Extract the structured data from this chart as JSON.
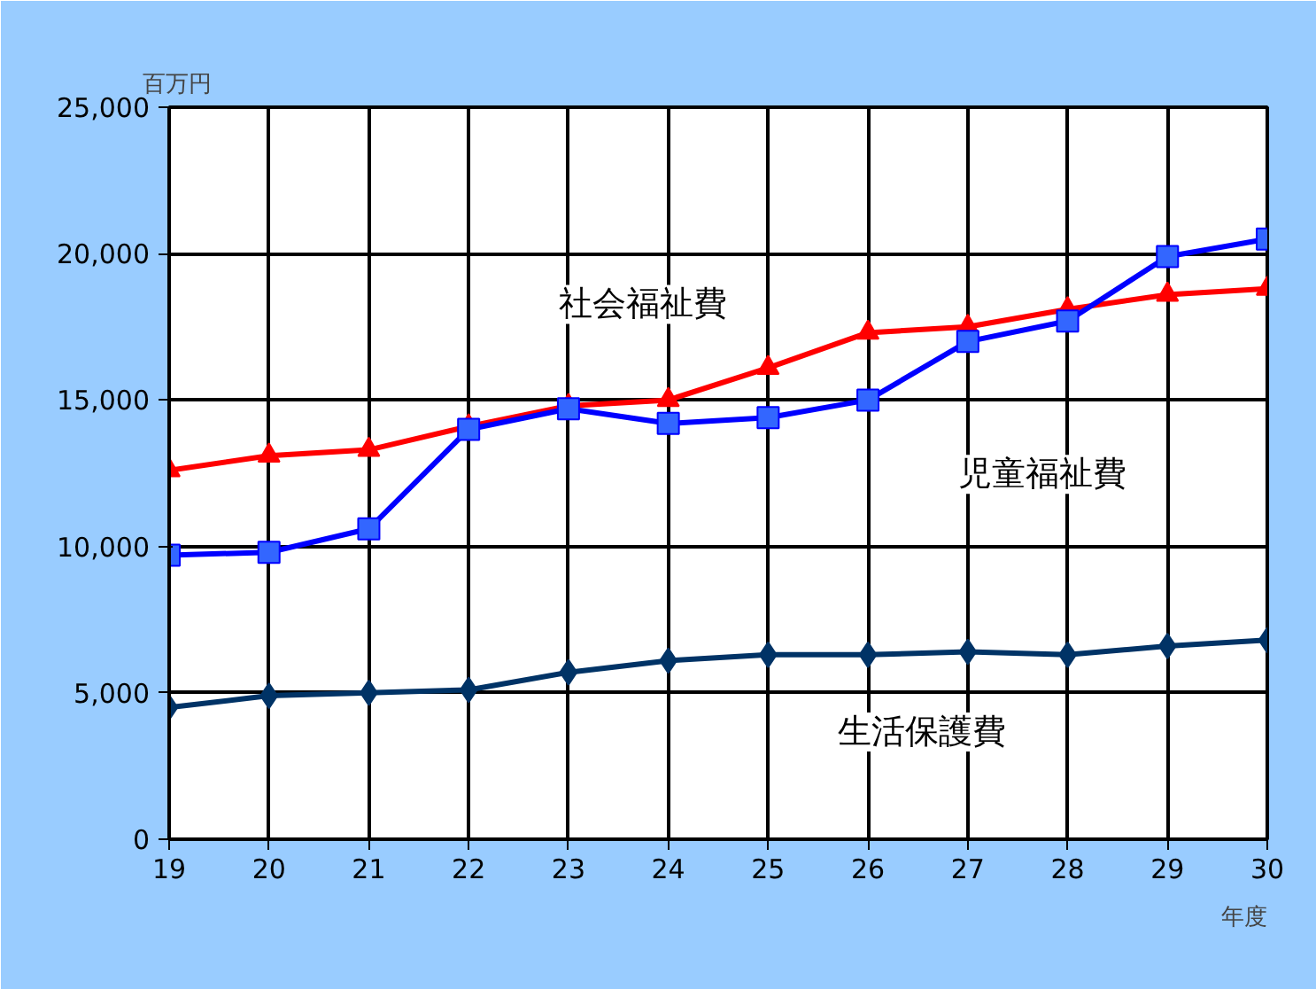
{
  "chart_data": {
    "type": "line",
    "ylabel": "百万円",
    "xlabel": "年度",
    "x": [
      19,
      20,
      21,
      22,
      23,
      24,
      25,
      26,
      27,
      28,
      29,
      30
    ],
    "xlim": [
      19,
      30
    ],
    "xticks": [
      19,
      20,
      21,
      22,
      23,
      24,
      25,
      26,
      27,
      28,
      29,
      30
    ],
    "ylim": [
      0,
      25000
    ],
    "yticks": [
      0,
      {
        "value": 5000,
        "label": "5,000"
      },
      {
        "value": 10000,
        "label": "10,000"
      },
      {
        "value": 15000,
        "label": "15,000"
      },
      {
        "value": 20000,
        "label": "20,000"
      },
      {
        "value": 25000,
        "label": "25,000"
      }
    ],
    "grid": true,
    "line_style": "solid",
    "series": [
      {
        "name": "社会福祉費",
        "color": "#ff0000",
        "marker": "triangle",
        "values": [
          12600,
          13100,
          13300,
          14100,
          14800,
          15000,
          16100,
          17300,
          17500,
          18100,
          18600,
          18800
        ]
      },
      {
        "name": "児童福祉費",
        "color": "#0000ff",
        "marker": "square",
        "values": [
          9700,
          9800,
          10600,
          14000,
          14700,
          14200,
          14400,
          15000,
          17000,
          17700,
          19900,
          20500
        ]
      },
      {
        "name": "生活保護費",
        "color": "#003366",
        "marker": "diamond",
        "values": [
          4500,
          4900,
          5000,
          5100,
          5700,
          6100,
          6300,
          6300,
          6400,
          6300,
          6600,
          6800
        ]
      }
    ]
  }
}
